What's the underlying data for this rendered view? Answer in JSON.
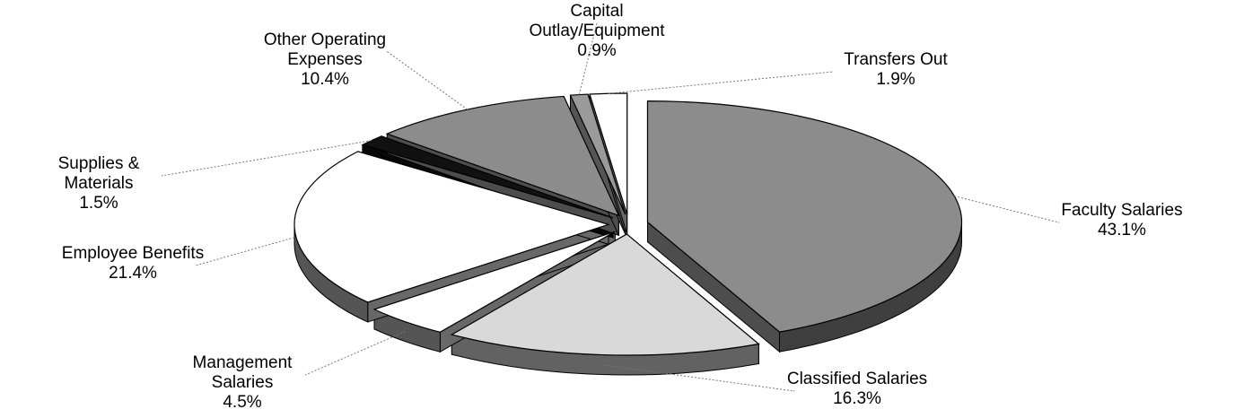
{
  "chart_data": {
    "type": "pie",
    "categories": [
      "Faculty Salaries",
      "Classified Salaries",
      "Management Salaries",
      "Employee Benefits",
      "Supplies & Materials",
      "Other Operating Expenses",
      "Capital Outlay/Equipment",
      "Transfers Out"
    ],
    "values": [
      43.1,
      16.3,
      4.5,
      21.4,
      1.5,
      10.4,
      0.9,
      1.9
    ],
    "value_labels": [
      "43.1%",
      "16.3%",
      "4.5%",
      "21.4%",
      "1.5%",
      "10.4%",
      "0.9%",
      "1.9%"
    ],
    "colors": [
      "#8c8c8c",
      "#d9d9d9",
      "#ffffff",
      "#ffffff",
      "#111111",
      "#8c8c8c",
      "#9a9a9a",
      "#ffffff"
    ]
  }
}
